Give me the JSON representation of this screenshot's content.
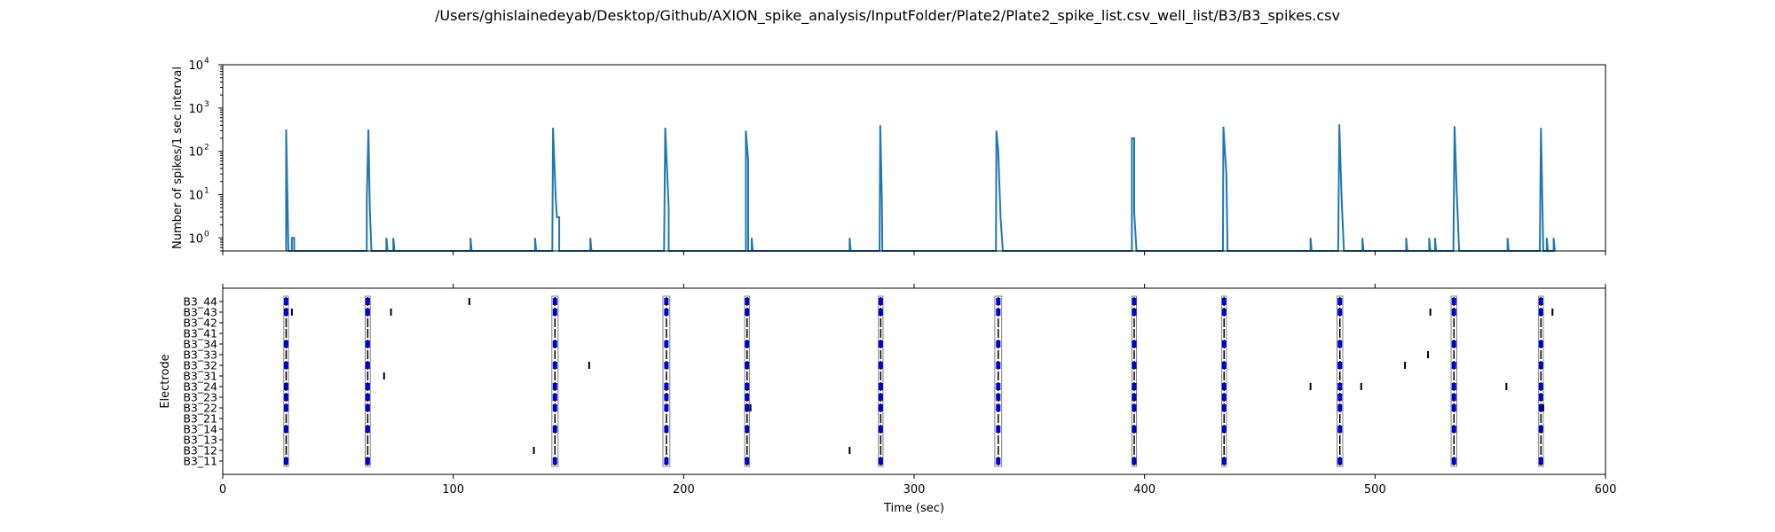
{
  "title": "/Users/ghislainedeyab/Desktop/Github/AXION_spike_analysis/InputFolder/Plate2/Plate2_spike_list.csv_well_list/B3/B3_spikes.csv",
  "colors": {
    "line": "#1f77b4",
    "raster": "#000000",
    "burst": "#0000cc",
    "network": "#808080"
  },
  "chart_data": [
    {
      "type": "line",
      "ylabel": "Number of spikes/1 sec interval",
      "xlabel": "",
      "xlim": [
        0,
        600
      ],
      "ylim": [
        0.5,
        10000
      ],
      "yscale": "log",
      "yticks": [
        1,
        10,
        100,
        1000,
        10000
      ],
      "ytick_labels": [
        "10",
        "10",
        "10",
        "10",
        "10"
      ],
      "ytick_exponents": [
        "0",
        "1",
        "2",
        "3",
        "4"
      ],
      "xticks": [
        0,
        100,
        200,
        300,
        400,
        500,
        600
      ],
      "series": [
        {
          "points": [
            [
              27.5,
              0.5
            ],
            [
              27.5,
              320
            ],
            [
              28.5,
              0.5
            ],
            [
              30,
              0.5
            ],
            [
              30,
              1
            ],
            [
              31,
              1
            ],
            [
              31,
              0.5
            ],
            [
              62.5,
              0.5
            ],
            [
              62.5,
              8
            ],
            [
              63.2,
              320
            ],
            [
              63.8,
              5
            ],
            [
              64.5,
              0.5
            ],
            [
              71,
              0.5
            ],
            [
              71,
              1
            ],
            [
              71.5,
              0.5
            ],
            [
              74,
              0.5
            ],
            [
              74,
              1
            ],
            [
              74.5,
              0.5
            ],
            [
              107.5,
              0.5
            ],
            [
              107.5,
              1
            ],
            [
              108,
              0.5
            ],
            [
              135.5,
              0.5
            ],
            [
              135.5,
              1
            ],
            [
              136,
              0.5
            ],
            [
              143,
              0.5
            ],
            [
              143.3,
              350
            ],
            [
              144.5,
              8
            ],
            [
              145,
              3
            ],
            [
              146,
              3
            ],
            [
              146,
              0.5
            ],
            [
              159.5,
              0.5
            ],
            [
              159.5,
              1
            ],
            [
              160,
              0.5
            ],
            [
              191.5,
              0.5
            ],
            [
              192,
              350
            ],
            [
              193.5,
              5
            ],
            [
              193.5,
              0.5
            ],
            [
              227,
              0.5
            ],
            [
              227,
              300
            ],
            [
              228,
              60
            ],
            [
              228,
              0.5
            ],
            [
              229.5,
              0.5
            ],
            [
              229.5,
              1
            ],
            [
              230,
              0.5
            ],
            [
              272,
              0.5
            ],
            [
              272,
              1
            ],
            [
              272.5,
              0.5
            ],
            [
              285,
              0.5
            ],
            [
              285.3,
              400
            ],
            [
              286,
              8
            ],
            [
              286.2,
              0.5
            ],
            [
              335.5,
              0.5
            ],
            [
              335.7,
              300
            ],
            [
              336.5,
              100
            ],
            [
              337.5,
              3
            ],
            [
              338.5,
              0.5
            ],
            [
              394.5,
              0.5
            ],
            [
              394.5,
              200
            ],
            [
              395.5,
              200
            ],
            [
              395.5,
              4
            ],
            [
              396.5,
              0.5
            ],
            [
              434,
              0.5
            ],
            [
              434.2,
              370
            ],
            [
              435.5,
              30
            ],
            [
              436,
              0.5
            ],
            [
              472,
              0.5
            ],
            [
              472,
              1
            ],
            [
              472.5,
              0.5
            ],
            [
              484,
              0.5
            ],
            [
              484.5,
              420
            ],
            [
              485.5,
              8
            ],
            [
              486.5,
              0.5
            ],
            [
              494.5,
              0.5
            ],
            [
              494.5,
              1
            ],
            [
              495,
              0.5
            ],
            [
              513.5,
              0.5
            ],
            [
              513.5,
              1
            ],
            [
              514,
              0.5
            ],
            [
              523.5,
              0.5
            ],
            [
              523.5,
              1
            ],
            [
              524,
              0.5
            ],
            [
              526,
              0.5
            ],
            [
              526,
              1
            ],
            [
              526.5,
              0.5
            ],
            [
              534,
              0.5
            ],
            [
              534.5,
              380
            ],
            [
              535.5,
              10
            ],
            [
              536.5,
              0.5
            ],
            [
              557.5,
              0.5
            ],
            [
              557.5,
              1
            ],
            [
              558,
              0.5
            ],
            [
              571.5,
              0.5
            ],
            [
              572,
              350
            ],
            [
              572.8,
              2
            ],
            [
              573,
              0.5
            ],
            [
              574.5,
              0.5
            ],
            [
              574.5,
              1
            ],
            [
              575,
              0.5
            ],
            [
              577.5,
              0.5
            ],
            [
              577.5,
              1
            ],
            [
              578,
              0.5
            ]
          ]
        }
      ]
    },
    {
      "type": "scatter",
      "ylabel": "Electrode",
      "xlabel": "Time (sec)",
      "xlim": [
        0,
        600
      ],
      "xticks": [
        0,
        100,
        200,
        300,
        400,
        500,
        600
      ],
      "categories": [
        "B3_11",
        "B3_12",
        "B3_13",
        "B3_14",
        "B3_21",
        "B3_22",
        "B3_23",
        "B3_24",
        "B3_31",
        "B3_32",
        "B3_33",
        "B3_34",
        "B3_41",
        "B3_42",
        "B3_43",
        "B3_44"
      ],
      "network_bursts": [
        [
          26.5,
          28.5
        ],
        [
          61.8,
          64.0
        ],
        [
          142.8,
          145.5
        ],
        [
          191.0,
          194.0
        ],
        [
          226.5,
          228.5
        ],
        [
          284.5,
          286.5
        ],
        [
          335.0,
          338.0
        ],
        [
          394.5,
          396.5
        ],
        [
          433.5,
          435.5
        ],
        [
          483.5,
          486.0
        ],
        [
          533.0,
          535.5
        ],
        [
          571.0,
          573.0
        ]
      ],
      "burst_electrodes": [
        "B3_11",
        "B3_14",
        "B3_22",
        "B3_23",
        "B3_24",
        "B3_32",
        "B3_34",
        "B3_43",
        "B3_44"
      ],
      "isolated_spikes": [
        {
          "electrode": "B3_44",
          "t": 107
        },
        {
          "electrode": "B3_43",
          "t": 73
        },
        {
          "electrode": "B3_43",
          "t": 30
        },
        {
          "electrode": "B3_43",
          "t": 524
        },
        {
          "electrode": "B3_43",
          "t": 577
        },
        {
          "electrode": "B3_32",
          "t": 159
        },
        {
          "electrode": "B3_32",
          "t": 513
        },
        {
          "electrode": "B3_33",
          "t": 523
        },
        {
          "electrode": "B3_31",
          "t": 70
        },
        {
          "electrode": "B3_24",
          "t": 472
        },
        {
          "electrode": "B3_24",
          "t": 494
        },
        {
          "electrode": "B3_24",
          "t": 557
        },
        {
          "electrode": "B3_22",
          "t": 229
        },
        {
          "electrode": "B3_22",
          "t": 573
        },
        {
          "electrode": "B3_12",
          "t": 135
        },
        {
          "electrode": "B3_12",
          "t": 272
        }
      ]
    }
  ]
}
